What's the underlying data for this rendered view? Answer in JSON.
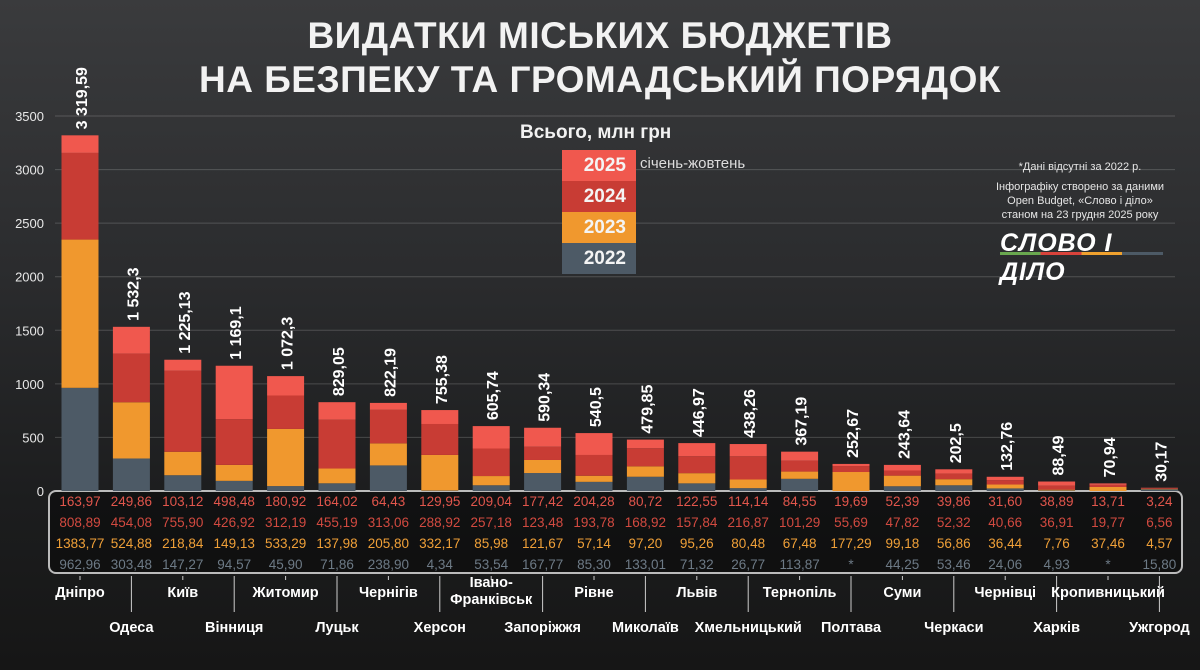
{
  "title_lines": [
    "ВИДАТКИ МІСЬКИХ БЮДЖЕТІВ",
    "НА БЕЗПЕКУ ТА ГРОМАДСЬКИЙ ПОРЯДОК"
  ],
  "notes": {
    "missing": "*Дані відсутні за 2022 р.",
    "source": "Інфографіку створено за даними Open Budget, «Слово і діло» станом на 23 грудня 2025 року",
    "logo": "СЛОВО І ДІЛО"
  },
  "chart_data": {
    "type": "bar",
    "stacked": true,
    "title": "Всього, млн грн",
    "ylim": [
      0,
      3500
    ],
    "yticks": [
      0,
      500,
      1000,
      1500,
      2000,
      2500,
      3000,
      3500
    ],
    "grid": true,
    "legend_position": "top-center",
    "legend_note": "січень-жовтень",
    "categories": [
      "Дніпро",
      "Одеса",
      "Київ",
      "Вінниця",
      "Житомир",
      "Луцьк",
      "Чернігів",
      "Херсон",
      "Івано-Франківськ",
      "Запоріжжя",
      "Рівне",
      "Миколаїв",
      "Львів",
      "Хмельницький",
      "Тернопіль",
      "Полтава",
      "Суми",
      "Черкаси",
      "Чернівці",
      "Харків",
      "Кропивницький",
      "Ужгород"
    ],
    "totals": [
      "3 319,59",
      "1 532,3",
      "1 225,13",
      "1 169,1",
      "1 072,3",
      "829,05",
      "822,19",
      "755,38",
      "605,74",
      "590,34",
      "540,5",
      "479,85",
      "446,97",
      "438,26",
      "367,19",
      "252,67",
      "243,64",
      "202,5",
      "132,76",
      "88,49",
      "70,94",
      "30,17"
    ],
    "series": [
      {
        "name": "2025",
        "color": "#f0584e",
        "values": [
          163.97,
          249.86,
          103.12,
          498.48,
          180.92,
          164.02,
          64.43,
          129.95,
          209.04,
          177.42,
          204.28,
          80.72,
          122.55,
          114.14,
          84.55,
          19.69,
          52.39,
          39.86,
          31.6,
          38.89,
          13.71,
          3.24
        ],
        "labels": [
          "163,97",
          "249,86",
          "103,12",
          "498,48",
          "180,92",
          "164,02",
          "64,43",
          "129,95",
          "209,04",
          "177,42",
          "204,28",
          "80,72",
          "122,55",
          "114,14",
          "84,55",
          "19,69",
          "52,39",
          "39,86",
          "31,60",
          "38,89",
          "13,71",
          "3,24"
        ]
      },
      {
        "name": "2024",
        "color": "#c83c34",
        "values": [
          808.89,
          454.08,
          755.9,
          426.92,
          312.19,
          455.19,
          313.06,
          288.92,
          257.18,
          123.48,
          193.78,
          168.92,
          157.84,
          216.87,
          101.29,
          55.69,
          47.82,
          52.32,
          40.66,
          36.91,
          19.77,
          6.56
        ],
        "labels": [
          "808,89",
          "454,08",
          "755,90",
          "426,92",
          "312,19",
          "455,19",
          "313,06",
          "288,92",
          "257,18",
          "123,48",
          "193,78",
          "168,92",
          "157,84",
          "216,87",
          "101,29",
          "55,69",
          "47,82",
          "52,32",
          "40,66",
          "36,91",
          "19,77",
          "6,56"
        ]
      },
      {
        "name": "2023",
        "color": "#f0982e",
        "values": [
          1383.77,
          524.88,
          218.84,
          149.13,
          533.29,
          137.98,
          205.8,
          332.17,
          85.98,
          121.67,
          57.14,
          97.2,
          95.26,
          80.48,
          67.48,
          177.29,
          99.18,
          56.86,
          36.44,
          7.76,
          37.46,
          4.57
        ],
        "labels": [
          "1383,77",
          "524,88",
          "218,84",
          "149,13",
          "533,29",
          "137,98",
          "205,80",
          "332,17",
          "85,98",
          "121,67",
          "57,14",
          "97,20",
          "95,26",
          "80,48",
          "67,48",
          "177,29",
          "99,18",
          "56,86",
          "36,44",
          "7,76",
          "37,46",
          "4,57"
        ]
      },
      {
        "name": "2022",
        "color": "#4d5a66",
        "values": [
          962.96,
          303.48,
          147.27,
          94.57,
          45.9,
          71.86,
          238.9,
          4.34,
          53.54,
          167.77,
          85.3,
          133.01,
          71.32,
          26.77,
          113.87,
          null,
          44.25,
          53.46,
          24.06,
          4.93,
          null,
          15.8
        ],
        "labels": [
          "962,96",
          "303,48",
          "147,27",
          "94,57",
          "45,90",
          "71,86",
          "238,90",
          "4,34",
          "53,54",
          "167,77",
          "85,30",
          "133,01",
          "71,32",
          "26,77",
          "113,87",
          "*",
          "44,25",
          "53,46",
          "24,06",
          "4,93",
          "*",
          "15,80"
        ]
      }
    ]
  }
}
